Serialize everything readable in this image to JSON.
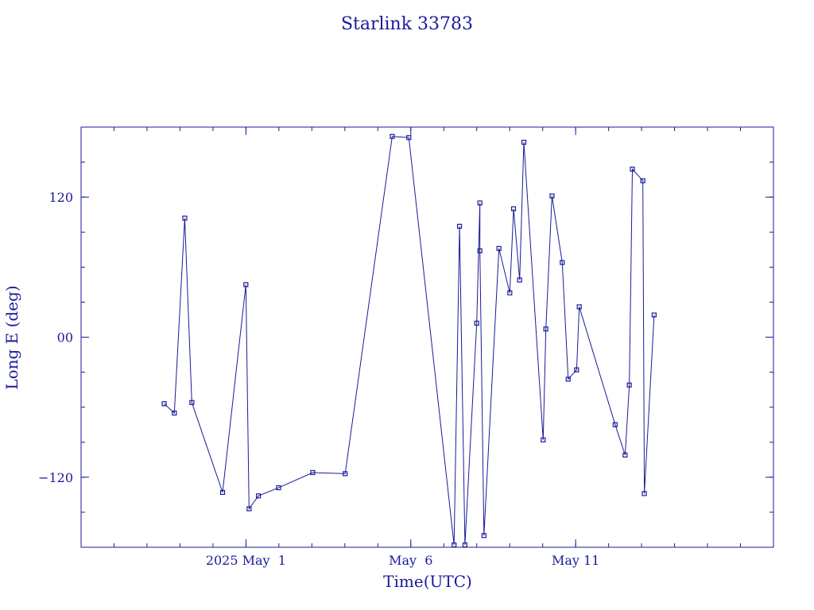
{
  "chart_data": {
    "type": "line",
    "title": "Starlink 33783",
    "xlabel": "Time(UTC)",
    "ylabel": "Long E (deg)",
    "xlim": [
      "2025-04-26T00:00",
      "2025-05-17T00:00"
    ],
    "ylim": [
      -180,
      180
    ],
    "x_ticks": [
      {
        "x": "2025-05-01T00:00",
        "label": "2025 May  1"
      },
      {
        "x": "2025-05-06T00:00",
        "label": "May  6"
      },
      {
        "x": "2025-05-11T00:00",
        "label": "May 11"
      }
    ],
    "y_ticks": [
      {
        "y": 120,
        "label": "120"
      },
      {
        "y": 0,
        "label": "00"
      },
      {
        "y": -120,
        "label": "−120"
      }
    ],
    "grid": false,
    "series_color": "#1a1a9a",
    "points": [
      {
        "x": "2025-04-28T12:29",
        "y": -57
      },
      {
        "x": "2025-04-28T19:53",
        "y": -65
      },
      {
        "x": "2025-04-29T03:29",
        "y": 102
      },
      {
        "x": "2025-04-29T08:38",
        "y": -56
      },
      {
        "x": "2025-04-30T07:01",
        "y": -133
      },
      {
        "x": "2025-04-30T23:58",
        "y": 45
      },
      {
        "x": "2025-05-01T02:17",
        "y": -147
      },
      {
        "x": "2025-05-01T09:05",
        "y": -136
      },
      {
        "x": "2025-05-01T23:46",
        "y": -129
      },
      {
        "x": "2025-05-03T00:37",
        "y": -116
      },
      {
        "x": "2025-05-04T00:12",
        "y": -117
      },
      {
        "x": "2025-05-05T10:30",
        "y": 172
      },
      {
        "x": "2025-05-05T22:33",
        "y": 171
      },
      {
        "x": "2025-05-07T07:30",
        "y": -178
      },
      {
        "x": "2025-05-07T11:28",
        "y": 95
      },
      {
        "x": "2025-05-07T15:25",
        "y": -178
      },
      {
        "x": "2025-05-08T00:00",
        "y": 12
      },
      {
        "x": "2025-05-08T02:19",
        "y": 115
      },
      {
        "x": "2025-05-08T02:19",
        "y": 74
      },
      {
        "x": "2025-05-08T05:17",
        "y": -170
      },
      {
        "x": "2025-05-08T16:10",
        "y": 76
      },
      {
        "x": "2025-05-09T00:05",
        "y": 38
      },
      {
        "x": "2025-05-09T02:49",
        "y": 110
      },
      {
        "x": "2025-05-09T07:13",
        "y": 49
      },
      {
        "x": "2025-05-09T10:19",
        "y": 167
      },
      {
        "x": "2025-05-10T00:22",
        "y": -88
      },
      {
        "x": "2025-05-10T02:19",
        "y": 7
      },
      {
        "x": "2025-05-10T06:49",
        "y": 121
      },
      {
        "x": "2025-05-10T14:16",
        "y": 64
      },
      {
        "x": "2025-05-10T18:34",
        "y": -36
      },
      {
        "x": "2025-05-11T00:42",
        "y": -28
      },
      {
        "x": "2025-05-11T02:37",
        "y": 26
      },
      {
        "x": "2025-05-12T04:46",
        "y": -75
      },
      {
        "x": "2025-05-12T12:00",
        "y": -101
      },
      {
        "x": "2025-05-12T15:04",
        "y": -41
      },
      {
        "x": "2025-05-12T17:17",
        "y": 144
      },
      {
        "x": "2025-05-13T00:54",
        "y": 134
      },
      {
        "x": "2025-05-13T02:00",
        "y": -134
      },
      {
        "x": "2025-05-13T09:07",
        "y": 19
      }
    ]
  }
}
